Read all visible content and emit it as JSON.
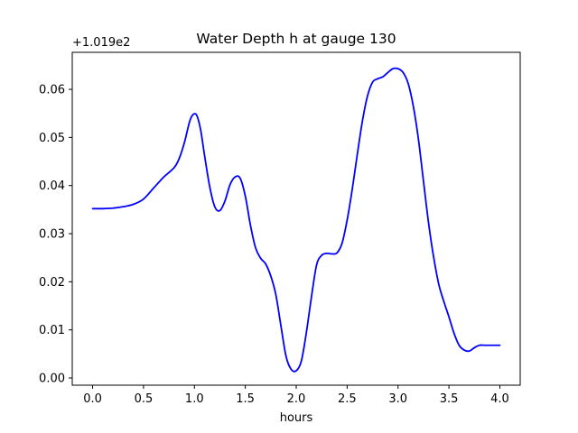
{
  "chart_data": {
    "type": "line",
    "title": "Water Depth h at gauge 130",
    "xlabel": "hours",
    "ylabel": "",
    "offset_label": "+1.019e2",
    "xlim": [
      -0.2,
      4.2
    ],
    "ylim": [
      -0.0015,
      0.0677
    ],
    "x_ticks": [
      0.0,
      0.5,
      1.0,
      1.5,
      2.0,
      2.5,
      3.0,
      3.5,
      4.0
    ],
    "x_tick_labels": [
      "0.0",
      "0.5",
      "1.0",
      "1.5",
      "2.0",
      "2.5",
      "3.0",
      "3.5",
      "4.0"
    ],
    "y_ticks": [
      0.0,
      0.01,
      0.02,
      0.03,
      0.04,
      0.05,
      0.06
    ],
    "y_tick_labels": [
      "0.00",
      "0.01",
      "0.02",
      "0.03",
      "0.04",
      "0.05",
      "0.06"
    ],
    "grid": false,
    "line_color": "#0000ff",
    "series": [
      {
        "x": [
          0.0,
          0.1,
          0.2,
          0.3,
          0.4,
          0.5,
          0.6,
          0.7,
          0.8,
          0.85,
          0.9,
          0.95,
          0.98,
          1.02,
          1.06,
          1.1,
          1.15,
          1.2,
          1.25,
          1.3,
          1.35,
          1.4,
          1.45,
          1.5,
          1.55,
          1.6,
          1.65,
          1.7,
          1.75,
          1.8,
          1.85,
          1.9,
          1.95,
          2.0,
          2.05,
          2.1,
          2.15,
          2.2,
          2.25,
          2.3,
          2.35,
          2.4,
          2.45,
          2.5,
          2.55,
          2.6,
          2.65,
          2.7,
          2.75,
          2.8,
          2.85,
          2.9,
          2.95,
          3.0,
          3.05,
          3.1,
          3.15,
          3.2,
          3.25,
          3.3,
          3.35,
          3.4,
          3.45,
          3.5,
          3.55,
          3.6,
          3.65,
          3.7,
          3.75,
          3.8,
          3.85,
          3.9,
          3.95,
          4.0
        ],
        "y": [
          0.0352,
          0.0352,
          0.0353,
          0.0356,
          0.0361,
          0.0372,
          0.0395,
          0.0418,
          0.0437,
          0.0456,
          0.0488,
          0.0531,
          0.0546,
          0.0547,
          0.0517,
          0.0462,
          0.0398,
          0.0356,
          0.0348,
          0.0368,
          0.0402,
          0.0418,
          0.0415,
          0.0378,
          0.0318,
          0.0271,
          0.0249,
          0.0237,
          0.0212,
          0.0173,
          0.0108,
          0.0045,
          0.0018,
          0.0015,
          0.0035,
          0.0095,
          0.0169,
          0.0235,
          0.0255,
          0.0259,
          0.0258,
          0.026,
          0.028,
          0.0328,
          0.0392,
          0.0465,
          0.0534,
          0.0586,
          0.0615,
          0.0622,
          0.0626,
          0.0635,
          0.0643,
          0.0643,
          0.0635,
          0.0612,
          0.0565,
          0.0497,
          0.0409,
          0.0322,
          0.0251,
          0.0195,
          0.0159,
          0.0127,
          0.0093,
          0.0068,
          0.0058,
          0.0056,
          0.0063,
          0.0068,
          0.0068,
          0.0068,
          0.0068,
          0.0068
        ]
      }
    ]
  }
}
